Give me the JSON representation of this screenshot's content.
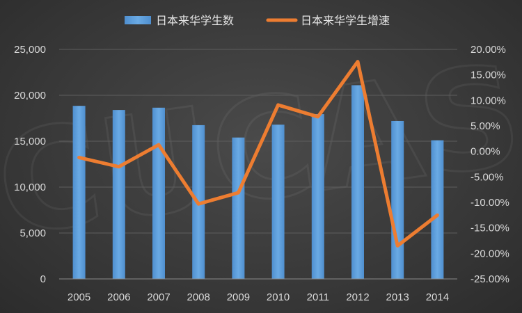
{
  "chart_data": {
    "type": "bar",
    "categories": [
      "2005",
      "2006",
      "2007",
      "2008",
      "2009",
      "2010",
      "2011",
      "2012",
      "2013",
      "2014"
    ],
    "series": [
      {
        "name": "日本来华学生数",
        "type": "bar",
        "axis": "left",
        "values": [
          18850,
          18400,
          18650,
          16750,
          15400,
          16800,
          17950,
          21100,
          17200,
          15100
        ],
        "color": "#5b9bd5"
      },
      {
        "name": "日本来华学生增速",
        "type": "line",
        "axis": "right",
        "values": [
          -1.2,
          -3.0,
          1.3,
          -10.3,
          -8.1,
          9.1,
          6.8,
          17.6,
          -18.5,
          -12.5
        ],
        "color": "#ed7d31"
      }
    ],
    "y_left": {
      "min": 0,
      "max": 25000,
      "ticks": [
        "0",
        "5,000",
        "10,000",
        "15,000",
        "20,000",
        "25,000"
      ]
    },
    "y_right": {
      "min": -25,
      "max": 20,
      "ticks": [
        "-25.00%",
        "-20.00%",
        "-15.00%",
        "-10.00%",
        "-5.00%",
        "0.00%",
        "5.00%",
        "10.00%",
        "15.00%",
        "20.00%"
      ]
    },
    "grid": true,
    "legend": "top-center",
    "watermark": "CUCAS"
  }
}
